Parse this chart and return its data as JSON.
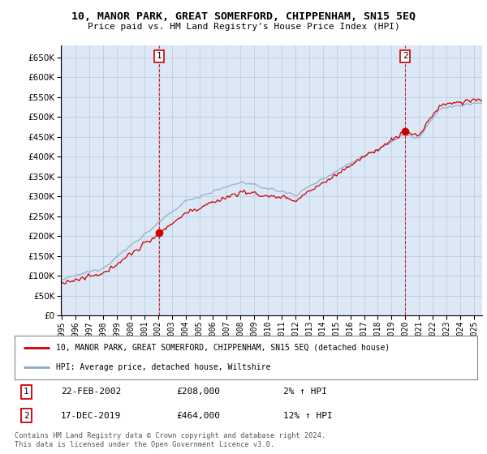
{
  "title": "10, MANOR PARK, GREAT SOMERFORD, CHIPPENHAM, SN15 5EQ",
  "subtitle": "Price paid vs. HM Land Registry's House Price Index (HPI)",
  "ylabel_vals": [
    0,
    50000,
    100000,
    150000,
    200000,
    250000,
    300000,
    350000,
    400000,
    450000,
    500000,
    550000,
    600000,
    650000
  ],
  "ylim": [
    0,
    680000
  ],
  "sale1_year": 2002.12,
  "sale1_price": 208000,
  "sale1_pct": "2%",
  "sale2_year": 2019.96,
  "sale2_price": 464000,
  "sale2_pct": "12%",
  "sale1_date": "22-FEB-2002",
  "sale2_date": "17-DEC-2019",
  "legend_line1": "10, MANOR PARK, GREAT SOMERFORD, CHIPPENHAM, SN15 5EQ (detached house)",
  "legend_line2": "HPI: Average price, detached house, Wiltshire",
  "footer": "Contains HM Land Registry data © Crown copyright and database right 2024.\nThis data is licensed under the Open Government Licence v3.0.",
  "line_color_red": "#cc0000",
  "line_color_blue": "#88aacc",
  "plot_bg": "#dce8f5",
  "background_color": "#ffffff",
  "grid_color": "#b8c8d8"
}
